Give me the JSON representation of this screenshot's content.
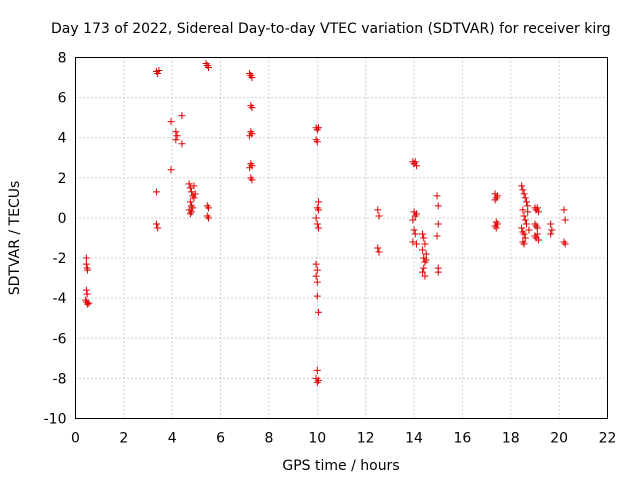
{
  "chart_data": {
    "type": "scatter",
    "title": "Day 173 of 2022, Sidereal Day-to-day VTEC variation (SDTVAR) for receiver kirg",
    "xlabel": "GPS time / hours",
    "ylabel": "SDTVAR / TECUs",
    "xlim": [
      0,
      22
    ],
    "ylim": [
      -10,
      8
    ],
    "xticks": [
      "0",
      "2",
      "4",
      "6",
      "8",
      "10",
      "12",
      "14",
      "16",
      "18",
      "20",
      "22"
    ],
    "yticks": [
      "8",
      "6",
      "4",
      "2",
      "0",
      "-2",
      "-4",
      "-6",
      "-8",
      "-10"
    ],
    "grid": true,
    "marker": "plus",
    "series_color": "#e00000",
    "series": [
      {
        "name": "SDTVAR",
        "points": [
          [
            0.45,
            -2.0
          ],
          [
            0.45,
            -2.3
          ],
          [
            0.48,
            -2.5
          ],
          [
            0.5,
            -2.6
          ],
          [
            0.45,
            -3.6
          ],
          [
            0.48,
            -3.8
          ],
          [
            0.42,
            -4.1
          ],
          [
            0.45,
            -4.2
          ],
          [
            0.5,
            -4.3
          ],
          [
            0.55,
            -4.25
          ],
          [
            3.35,
            7.3
          ],
          [
            3.4,
            7.2
          ],
          [
            3.45,
            7.35
          ],
          [
            3.35,
            1.3
          ],
          [
            3.35,
            -0.3
          ],
          [
            3.4,
            -0.5
          ],
          [
            3.95,
            4.8
          ],
          [
            3.95,
            2.4
          ],
          [
            4.15,
            4.3
          ],
          [
            4.2,
            4.1
          ],
          [
            4.15,
            3.9
          ],
          [
            4.4,
            5.1
          ],
          [
            4.4,
            3.7
          ],
          [
            4.7,
            1.7
          ],
          [
            4.75,
            1.5
          ],
          [
            4.8,
            1.3
          ],
          [
            4.85,
            1.1
          ],
          [
            4.9,
            1.0
          ],
          [
            4.75,
            0.8
          ],
          [
            4.8,
            0.6
          ],
          [
            4.85,
            0.5
          ],
          [
            4.7,
            0.4
          ],
          [
            4.8,
            0.3
          ],
          [
            4.9,
            1.6
          ],
          [
            4.95,
            1.2
          ],
          [
            4.75,
            0.2
          ],
          [
            5.4,
            7.7
          ],
          [
            5.45,
            7.6
          ],
          [
            5.5,
            7.5
          ],
          [
            5.45,
            0.6
          ],
          [
            5.5,
            0.5
          ],
          [
            5.45,
            0.1
          ],
          [
            5.5,
            0.0
          ],
          [
            7.2,
            7.2
          ],
          [
            7.25,
            7.1
          ],
          [
            7.3,
            7.0
          ],
          [
            7.25,
            5.6
          ],
          [
            7.3,
            5.5
          ],
          [
            7.25,
            4.3
          ],
          [
            7.3,
            4.2
          ],
          [
            7.2,
            4.1
          ],
          [
            7.25,
            2.7
          ],
          [
            7.3,
            2.6
          ],
          [
            7.2,
            2.5
          ],
          [
            7.25,
            2.0
          ],
          [
            7.3,
            1.9
          ],
          [
            9.95,
            4.5
          ],
          [
            10.0,
            4.4
          ],
          [
            10.05,
            4.5
          ],
          [
            9.95,
            3.9
          ],
          [
            10.0,
            3.8
          ],
          [
            10.05,
            0.8
          ],
          [
            10.0,
            0.5
          ],
          [
            10.05,
            0.4
          ],
          [
            9.95,
            0.0
          ],
          [
            10.0,
            -0.3
          ],
          [
            10.05,
            -0.5
          ],
          [
            9.95,
            -2.3
          ],
          [
            10.0,
            -2.6
          ],
          [
            9.95,
            -2.9
          ],
          [
            10.0,
            -3.2
          ],
          [
            10.0,
            -3.9
          ],
          [
            10.05,
            -4.7
          ],
          [
            10.0,
            -7.6
          ],
          [
            9.95,
            -8.0
          ],
          [
            10.05,
            -8.1
          ],
          [
            10.0,
            -8.2
          ],
          [
            12.5,
            0.4
          ],
          [
            12.55,
            0.1
          ],
          [
            12.5,
            -1.5
          ],
          [
            12.55,
            -1.7
          ],
          [
            13.95,
            2.8
          ],
          [
            14.0,
            2.7
          ],
          [
            14.05,
            2.8
          ],
          [
            14.1,
            2.6
          ],
          [
            14.0,
            0.3
          ],
          [
            14.05,
            0.1
          ],
          [
            13.95,
            -0.1
          ],
          [
            14.1,
            0.2
          ],
          [
            14.0,
            -0.6
          ],
          [
            14.05,
            -0.8
          ],
          [
            13.95,
            -1.2
          ],
          [
            14.1,
            -1.3
          ],
          [
            14.35,
            -0.8
          ],
          [
            14.4,
            -1.0
          ],
          [
            14.45,
            -1.3
          ],
          [
            14.35,
            -1.6
          ],
          [
            14.4,
            -2.0
          ],
          [
            14.45,
            -2.2
          ],
          [
            14.4,
            -2.5
          ],
          [
            14.35,
            -2.7
          ],
          [
            14.45,
            -2.9
          ],
          [
            14.5,
            -1.8
          ],
          [
            14.5,
            -2.1
          ],
          [
            14.95,
            1.1
          ],
          [
            15.0,
            0.6
          ],
          [
            15.0,
            -0.3
          ],
          [
            14.95,
            -0.9
          ],
          [
            15.0,
            -2.5
          ],
          [
            15.0,
            -2.7
          ],
          [
            17.35,
            1.2
          ],
          [
            17.4,
            1.0
          ],
          [
            17.45,
            1.1
          ],
          [
            17.35,
            0.9
          ],
          [
            17.4,
            -0.2
          ],
          [
            17.45,
            -0.3
          ],
          [
            17.35,
            -0.4
          ],
          [
            17.4,
            -0.5
          ],
          [
            18.45,
            1.6
          ],
          [
            18.5,
            1.4
          ],
          [
            18.55,
            1.2
          ],
          [
            18.6,
            1.0
          ],
          [
            18.65,
            0.8
          ],
          [
            18.7,
            0.6
          ],
          [
            18.5,
            0.4
          ],
          [
            18.55,
            0.1
          ],
          [
            18.6,
            -0.1
          ],
          [
            18.65,
            -0.3
          ],
          [
            18.45,
            -0.5
          ],
          [
            18.5,
            -0.7
          ],
          [
            18.55,
            -0.8
          ],
          [
            18.6,
            -1.0
          ],
          [
            18.5,
            -1.2
          ],
          [
            18.55,
            -1.3
          ],
          [
            18.7,
            0.3
          ],
          [
            18.75,
            -0.6
          ],
          [
            19.0,
            0.5
          ],
          [
            19.05,
            0.4
          ],
          [
            19.1,
            0.5
          ],
          [
            19.15,
            0.3
          ],
          [
            19.0,
            -0.3
          ],
          [
            19.05,
            -0.4
          ],
          [
            19.1,
            -0.5
          ],
          [
            19.0,
            -0.9
          ],
          [
            19.05,
            -1.0
          ],
          [
            19.15,
            -1.1
          ],
          [
            19.1,
            -0.8
          ],
          [
            19.65,
            -0.3
          ],
          [
            19.7,
            -0.6
          ],
          [
            19.65,
            -0.8
          ],
          [
            20.2,
            0.4
          ],
          [
            20.25,
            -0.1
          ],
          [
            20.2,
            -1.2
          ],
          [
            20.25,
            -1.3
          ]
        ]
      }
    ]
  }
}
